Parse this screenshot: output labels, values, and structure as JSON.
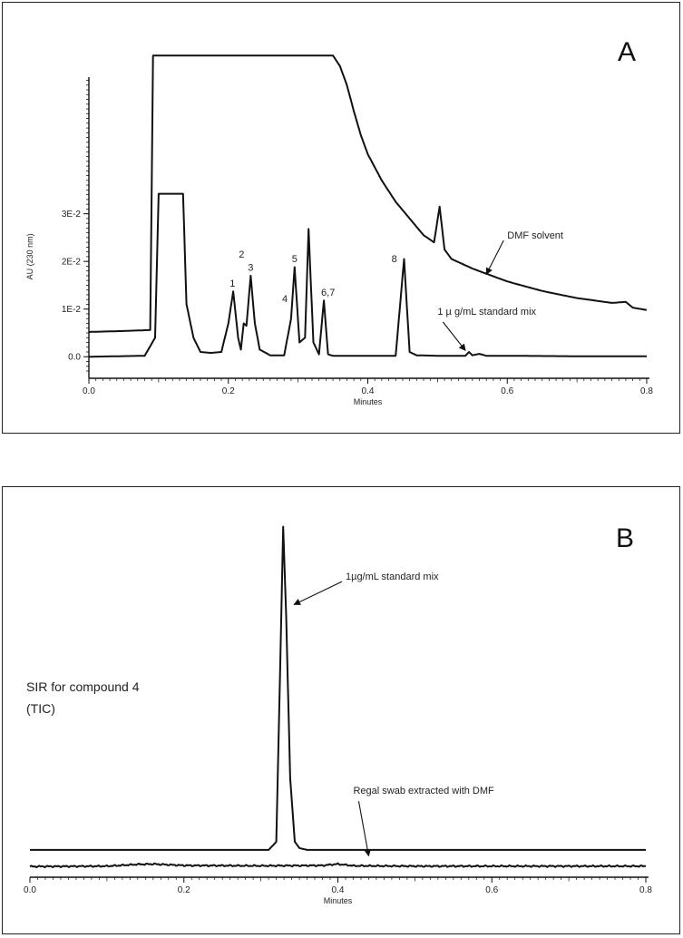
{
  "chart_data": [
    {
      "type": "line",
      "panel_letter": "A",
      "xlabel": "Minutes",
      "ylabel": "AU (230 nm)",
      "xlim": [
        0.0,
        0.8
      ],
      "ylim": [
        -0.003,
        0.068
      ],
      "x_ticks": [
        "0.0",
        "0.2",
        "0.4",
        "0.6",
        "0.8"
      ],
      "y_ticks": [
        {
          "value": 0.0,
          "label": "0.0"
        },
        {
          "value": 0.01,
          "label": "1E-2"
        },
        {
          "value": 0.02,
          "label": "2E-2"
        },
        {
          "value": 0.03,
          "label": "3E-2"
        }
      ],
      "grid": false,
      "series": [
        {
          "name": "DMF solvent",
          "x": [
            0.0,
            0.05,
            0.088,
            0.092,
            0.35,
            0.36,
            0.37,
            0.38,
            0.39,
            0.4,
            0.42,
            0.44,
            0.46,
            0.48,
            0.495,
            0.503,
            0.51,
            0.52,
            0.55,
            0.6,
            0.65,
            0.7,
            0.75,
            0.77,
            0.78,
            0.8
          ],
          "y": [
            0.0052,
            0.0054,
            0.0056,
            0.0632,
            0.0632,
            0.061,
            0.057,
            0.0515,
            0.0465,
            0.0425,
            0.037,
            0.0325,
            0.029,
            0.0255,
            0.024,
            0.0315,
            0.0225,
            0.0205,
            0.0185,
            0.0158,
            0.0138,
            0.0123,
            0.0113,
            0.0115,
            0.0103,
            0.0098
          ]
        },
        {
          "name": "1 µg/mL standard mix",
          "x": [
            0.0,
            0.08,
            0.095,
            0.1,
            0.135,
            0.14,
            0.15,
            0.16,
            0.175,
            0.19,
            0.2,
            0.207,
            0.214,
            0.218,
            0.222,
            0.226,
            0.232,
            0.238,
            0.245,
            0.26,
            0.28,
            0.29,
            0.295,
            0.302,
            0.31,
            0.315,
            0.322,
            0.33,
            0.337,
            0.343,
            0.35,
            0.36,
            0.4,
            0.44,
            0.452,
            0.46,
            0.47,
            0.5,
            0.54,
            0.545,
            0.55,
            0.56,
            0.57,
            0.6,
            0.7,
            0.8
          ],
          "y": [
            0.0,
            0.0002,
            0.004,
            0.0342,
            0.0342,
            0.011,
            0.004,
            0.001,
            0.0008,
            0.001,
            0.007,
            0.0137,
            0.004,
            0.0015,
            0.007,
            0.0065,
            0.017,
            0.007,
            0.0015,
            0.0003,
            0.0003,
            0.008,
            0.0188,
            0.003,
            0.004,
            0.0268,
            0.003,
            0.0005,
            0.0118,
            0.0005,
            0.0002,
            0.0002,
            0.0002,
            0.0002,
            0.0205,
            0.001,
            0.0003,
            0.0002,
            0.0002,
            0.001,
            0.0003,
            0.0006,
            0.0002,
            0.0002,
            0.0001,
            0.0001
          ]
        }
      ],
      "peak_labels": [
        {
          "label": "1",
          "x": 0.206,
          "y": 0.0147
        },
        {
          "label": "2",
          "x": 0.219,
          "y": 0.0208
        },
        {
          "label": "3",
          "x": 0.232,
          "y": 0.018
        },
        {
          "label": "4",
          "x": 0.281,
          "y": 0.0115
        },
        {
          "label": "5",
          "x": 0.295,
          "y": 0.0198
        },
        {
          "label": "6,7",
          "x": 0.343,
          "y": 0.0128
        },
        {
          "label": "8",
          "x": 0.438,
          "y": 0.0198
        }
      ],
      "annotations": [
        {
          "text": "DMF solvent",
          "text_x": 0.6,
          "text_y": 0.0248,
          "arrow_to_x": 0.57,
          "arrow_to_y": 0.0173
        },
        {
          "text": "1  µ g/mL  standard mix",
          "text_x": 0.5,
          "text_y": 0.0088,
          "arrow_to_x": 0.54,
          "arrow_to_y": 0.0013
        }
      ]
    },
    {
      "type": "line",
      "panel_letter": "B",
      "xlabel": "Minutes",
      "ylabel": "",
      "xlim": [
        0.0,
        0.8
      ],
      "ylim": [
        -0.02,
        1.0
      ],
      "x_ticks": [
        "0.0",
        "0.2",
        "0.4",
        "0.6",
        "0.8"
      ],
      "y_ticks": [],
      "grid": false,
      "side_label": [
        "SIR for compound 4",
        "(TIC)"
      ],
      "series": [
        {
          "name": "1µg/mL  standard mix",
          "x": [
            0.0,
            0.31,
            0.32,
            0.325,
            0.329,
            0.333,
            0.338,
            0.344,
            0.35,
            0.36,
            0.8
          ],
          "y": [
            0.047,
            0.047,
            0.07,
            0.55,
            0.96,
            0.7,
            0.25,
            0.07,
            0.052,
            0.047,
            0.047
          ],
          "noisy": false
        },
        {
          "name": "Regal swab extracted with DMF",
          "x": [
            0.0,
            0.1,
            0.14,
            0.16,
            0.2,
            0.3,
            0.38,
            0.4,
            0.42,
            0.5,
            0.6,
            0.7,
            0.8
          ],
          "y": [
            0.0,
            0.001,
            0.006,
            0.007,
            0.003,
            0.002,
            0.003,
            0.007,
            0.002,
            0.001,
            0.001,
            0.001,
            0.001
          ],
          "noisy": true
        }
      ],
      "annotations": [
        {
          "text": "1µg/mL  standard mix",
          "text_x": 0.41,
          "text_y": 0.81,
          "arrow_to_x": 0.343,
          "arrow_to_y": 0.74
        },
        {
          "text": "Regal swab extracted with DMF",
          "text_x": 0.42,
          "text_y": 0.205,
          "arrow_to_x": 0.44,
          "arrow_to_y": 0.03
        }
      ]
    }
  ]
}
